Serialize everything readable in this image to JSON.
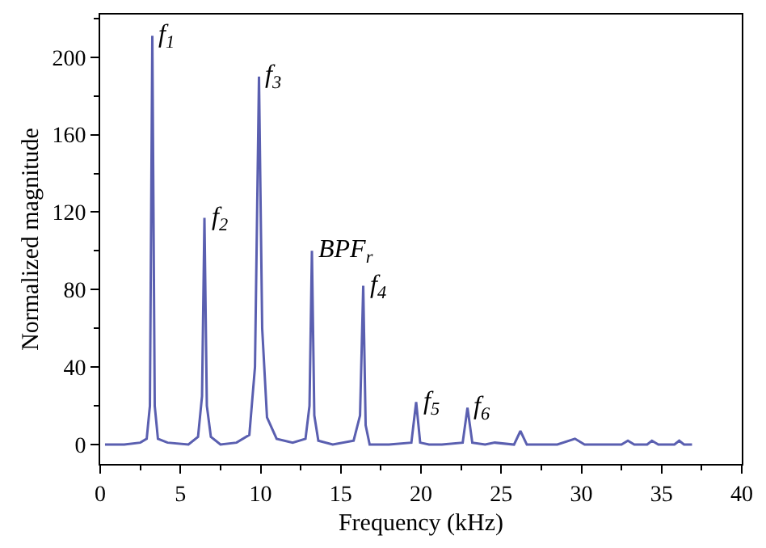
{
  "chart_data": {
    "type": "line",
    "xlabel": "Frequency (kHz)",
    "ylabel": "Normalized magnitude",
    "x": [
      0.3,
      1.5,
      2.5,
      2.9,
      3.1,
      3.25,
      3.4,
      3.6,
      4.2,
      5.5,
      6.1,
      6.35,
      6.5,
      6.65,
      6.9,
      7.5,
      8.5,
      9.3,
      9.65,
      9.9,
      10.1,
      10.4,
      11.0,
      12.0,
      12.8,
      13.05,
      13.2,
      13.35,
      13.6,
      14.5,
      15.8,
      16.2,
      16.4,
      16.55,
      16.8,
      18.0,
      19.4,
      19.7,
      19.95,
      20.5,
      21.3,
      22.6,
      22.9,
      23.2,
      24.0,
      24.6,
      25.8,
      26.2,
      26.6,
      27.5,
      28.5,
      29.6,
      30.2,
      31.2,
      32.5,
      32.9,
      33.3,
      34.1,
      34.4,
      34.8,
      35.8,
      36.1,
      36.4,
      36.9
    ],
    "series": [
      {
        "color": "#5a5fb0",
        "values": [
          0,
          0,
          1,
          3,
          20,
          211,
          20,
          3,
          1,
          0,
          4,
          25,
          117,
          20,
          4,
          0,
          1,
          5,
          40,
          190,
          60,
          14,
          3,
          1,
          3,
          20,
          100,
          15,
          2,
          0,
          2,
          15,
          82,
          10,
          0,
          0,
          1,
          22,
          1,
          0,
          0,
          1,
          19,
          1,
          0,
          1,
          0,
          7,
          0,
          0,
          0,
          3,
          0,
          0,
          0,
          2,
          0,
          0,
          2,
          0,
          0,
          2,
          0,
          0
        ]
      }
    ],
    "xlim": [
      0,
      40
    ],
    "xticks": [
      0,
      5,
      10,
      15,
      20,
      25,
      30,
      35,
      40
    ],
    "ylim": [
      -10,
      222
    ],
    "yticks": [
      0,
      40,
      80,
      120,
      160,
      200
    ],
    "marker": "none",
    "line_style": "solid",
    "annotations": [
      {
        "text": "f$_{1}$",
        "x": 3.25,
        "y": 211
      },
      {
        "text": "f$_{2}$",
        "x": 6.5,
        "y": 117
      },
      {
        "text": "f$_{3}$",
        "x": 9.9,
        "y": 190
      },
      {
        "text": "BPF$_{r}$",
        "x": 13.2,
        "y": 100
      },
      {
        "text": "f$_{4}$",
        "x": 16.4,
        "y": 82
      },
      {
        "text": "f$_{5}$",
        "x": 19.7,
        "y": 22
      },
      {
        "text": "f$_{6}$",
        "x": 22.9,
        "y": 19
      }
    ]
  }
}
